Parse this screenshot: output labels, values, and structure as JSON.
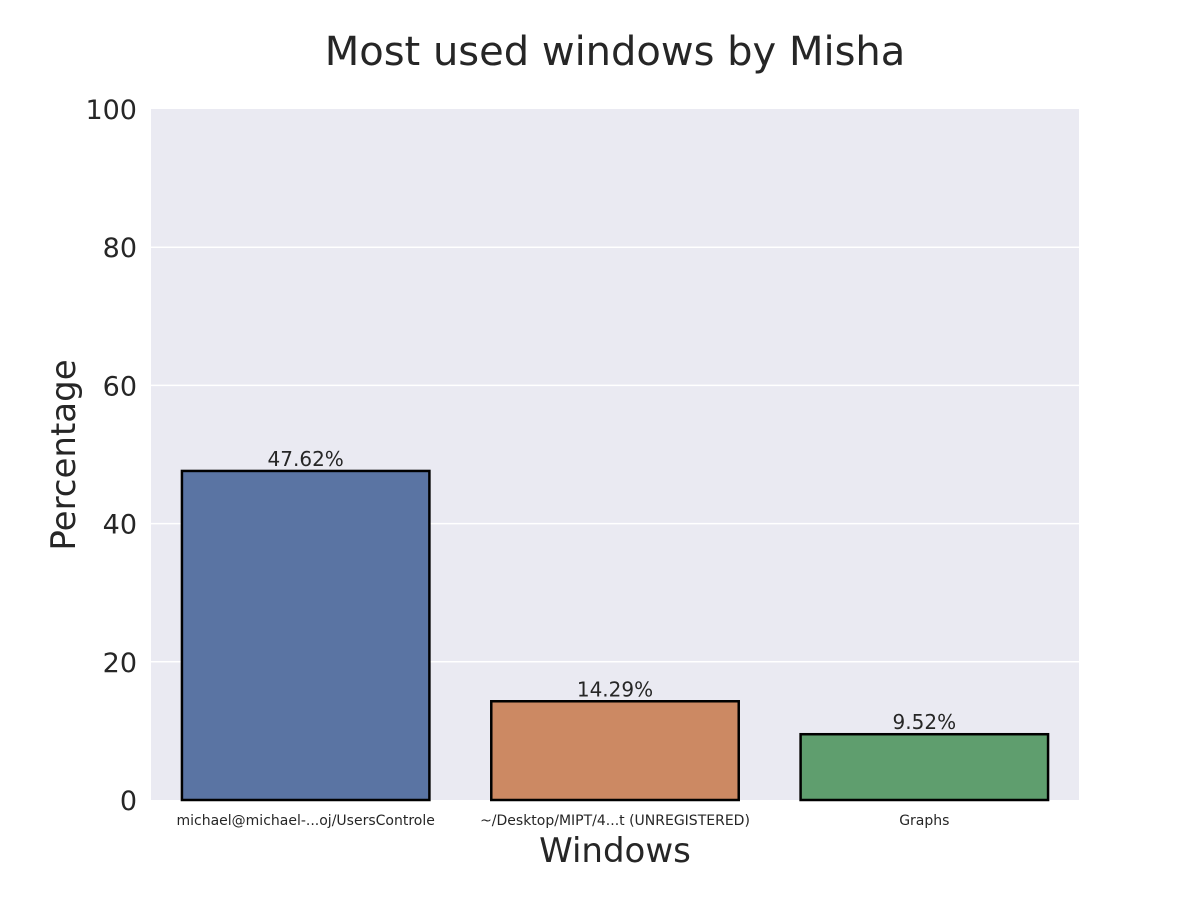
{
  "chart_data": {
    "type": "bar",
    "title": "Most used windows by Misha",
    "xlabel": "Windows",
    "ylabel": "Percentage",
    "ylim": [
      0,
      100
    ],
    "yticks": [
      0,
      20,
      40,
      60,
      80,
      100
    ],
    "categories": [
      "michael@michael-...oj/UsersControle",
      "~/Desktop/MIPT/4...t (UNREGISTERED)",
      "Graphs"
    ],
    "values": [
      47.62,
      14.29,
      9.52
    ],
    "data_labels": [
      "47.62%",
      "14.29%",
      "9.52%"
    ],
    "colors": [
      "#5a74a3",
      "#cc8963",
      "#5f9e6e"
    ],
    "plot_background": "#eaeaf2",
    "grid": true,
    "legend": false
  }
}
